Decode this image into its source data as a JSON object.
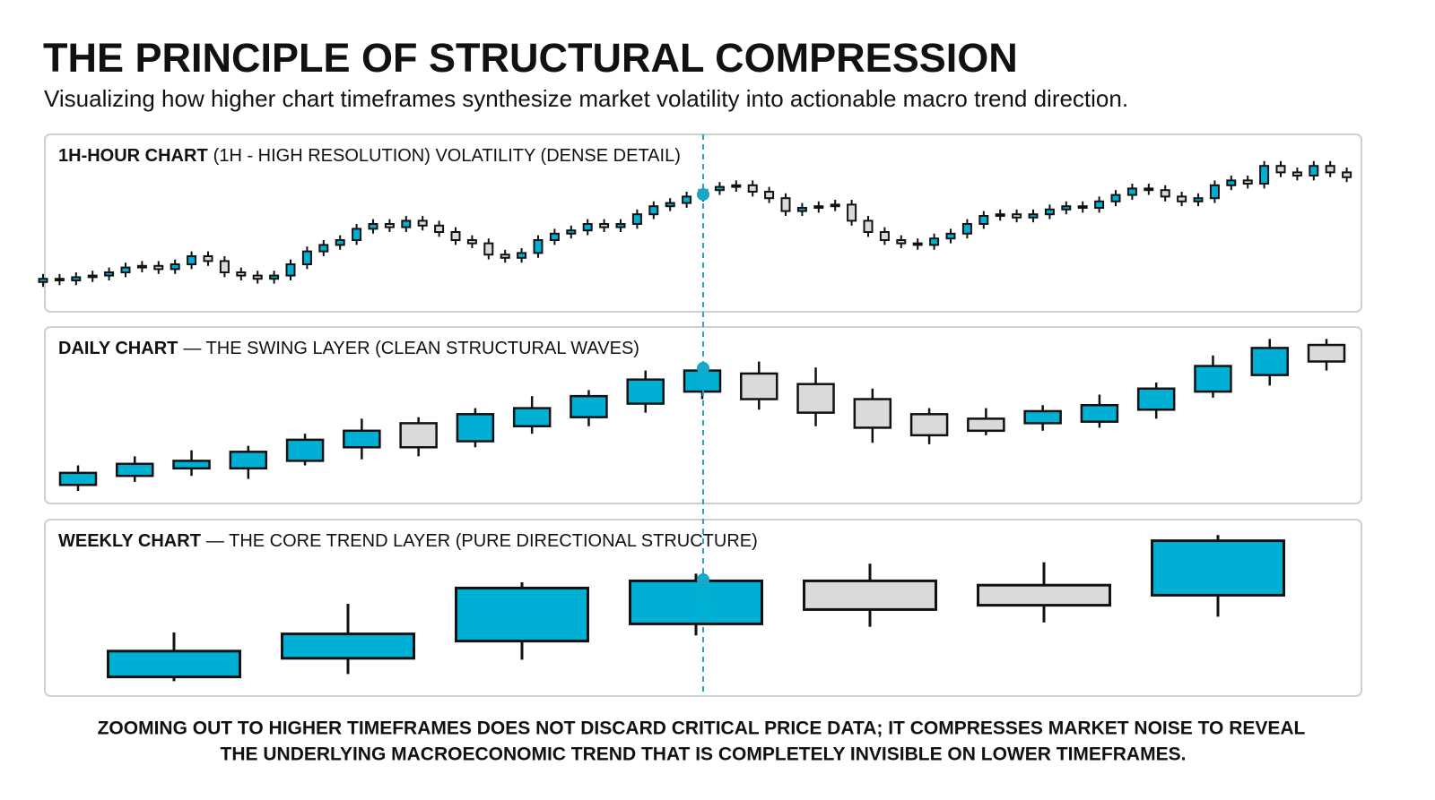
{
  "header": {
    "title": "THE PRINCIPLE OF STRUCTURAL COMPRESSION",
    "subtitle": "Visualizing how higher chart timeframes synthesize market volatility into actionable macro trend direction."
  },
  "chart_data": [
    {
      "type": "candlestick",
      "label_bold": "1H-HOUR CHART",
      "label": "(1H - HIGH RESOLUTION) VOLATILITY (DENSE DETAIL)",
      "up_color": "#00b0d4",
      "down_color": "#d9dadc",
      "ylim": [
        0,
        100
      ],
      "open": [
        14,
        16,
        15,
        17,
        18,
        20,
        23,
        24,
        22,
        25,
        30,
        27,
        20,
        18,
        16,
        18,
        25,
        33,
        37,
        40,
        47,
        50,
        48,
        52,
        49,
        45,
        40,
        38,
        31,
        29,
        32,
        40,
        44,
        46,
        50,
        48,
        50,
        56,
        61,
        63,
        67,
        71,
        73,
        74,
        70,
        66,
        58,
        60,
        61,
        62,
        52,
        45,
        40,
        38,
        37,
        41,
        44,
        50,
        55,
        56,
        54,
        56,
        59,
        61,
        60,
        64,
        68,
        72,
        71,
        67,
        64,
        66,
        74,
        77,
        75,
        86,
        82,
        80,
        86,
        82
      ],
      "high": [
        19,
        19,
        20,
        21,
        23,
        26,
        27,
        27,
        28,
        33,
        33,
        30,
        23,
        21,
        21,
        28,
        36,
        40,
        43,
        50,
        53,
        53,
        55,
        55,
        52,
        48,
        43,
        41,
        34,
        35,
        43,
        47,
        49,
        53,
        53,
        53,
        59,
        64,
        66,
        70,
        74,
        76,
        77,
        77,
        73,
        69,
        63,
        64,
        65,
        65,
        55,
        48,
        43,
        41,
        44,
        47,
        53,
        58,
        59,
        59,
        59,
        62,
        64,
        64,
        67,
        71,
        75,
        75,
        74,
        70,
        69,
        77,
        80,
        80,
        89,
        89,
        85,
        89,
        89,
        85
      ],
      "low": [
        11,
        12,
        12,
        14,
        15,
        17,
        20,
        19,
        19,
        22,
        24,
        17,
        15,
        13,
        13,
        15,
        22,
        30,
        34,
        37,
        44,
        45,
        45,
        46,
        42,
        37,
        35,
        28,
        26,
        26,
        29,
        37,
        41,
        43,
        45,
        45,
        47,
        53,
        58,
        60,
        64,
        68,
        70,
        67,
        63,
        55,
        55,
        57,
        58,
        49,
        42,
        37,
        35,
        34,
        34,
        38,
        41,
        47,
        52,
        51,
        51,
        53,
        56,
        57,
        57,
        61,
        65,
        68,
        64,
        61,
        61,
        63,
        71,
        72,
        72,
        79,
        77,
        77,
        79,
        76
      ],
      "close": [
        16,
        15,
        17,
        18,
        20,
        23,
        24,
        22,
        25,
        30,
        27,
        20,
        18,
        16,
        18,
        25,
        33,
        37,
        40,
        47,
        50,
        48,
        52,
        49,
        45,
        40,
        38,
        31,
        29,
        32,
        40,
        44,
        46,
        50,
        48,
        50,
        56,
        61,
        63,
        67,
        71,
        73,
        74,
        70,
        66,
        58,
        60,
        61,
        62,
        52,
        45,
        40,
        38,
        37,
        41,
        44,
        50,
        55,
        56,
        54,
        56,
        59,
        61,
        60,
        64,
        68,
        72,
        71,
        67,
        64,
        66,
        74,
        77,
        75,
        86,
        82,
        80,
        86,
        82,
        79
      ]
    },
    {
      "type": "candlestick",
      "label_bold": "DAILY CHART",
      "label": "— THE SWING LAYER (CLEAN STRUCTURAL WAVES)",
      "up_color": "#00b0d4",
      "down_color": "#d9dadc",
      "ylim": [
        0,
        105
      ],
      "open": [
        4,
        10,
        15,
        15,
        20,
        29,
        45,
        33,
        43,
        49,
        58,
        66,
        78,
        71,
        61,
        51,
        48,
        45,
        46,
        54,
        66,
        77,
        97
      ],
      "high": [
        17,
        23,
        27,
        30,
        38,
        48,
        49,
        55,
        63,
        67,
        80,
        85,
        86,
        82,
        68,
        55,
        55,
        57,
        64,
        72,
        90,
        101,
        101
      ],
      "low": [
        0,
        6,
        10,
        8,
        17,
        21,
        23,
        29,
        38,
        43,
        52,
        61,
        54,
        43,
        32,
        31,
        37,
        40,
        42,
        48,
        62,
        70,
        80
      ],
      "close": [
        12,
        18,
        20,
        26,
        34,
        40,
        29,
        51,
        55,
        63,
        74,
        80,
        61,
        52,
        42,
        37,
        40,
        53,
        57,
        68,
        83,
        95,
        86
      ]
    },
    {
      "type": "candlestick",
      "label_bold": "WEEKLY CHART",
      "label": "— THE CORE TREND LAYER (PURE DIRECTIONAL STRUCTURE)",
      "up_color": "#00b0d4",
      "down_color": "#d9dadc",
      "ylim": [
        0,
        105
      ],
      "open": [
        4,
        17,
        29,
        41,
        71,
        68,
        61
      ],
      "high": [
        35,
        55,
        70,
        76,
        83,
        84,
        103
      ],
      "low": [
        1,
        6,
        16,
        33,
        39,
        42,
        46
      ],
      "close": [
        22,
        34,
        66,
        71,
        51,
        54,
        99
      ]
    }
  ],
  "footer": {
    "line1": "ZOOMING OUT TO HIGHER TIMEFRAMES DOES NOT DISCARD CRITICAL PRICE DATA; IT COMPRESSES MARKET NOISE TO REVEAL",
    "line2": "THE UNDERLYING MACROECONOMIC TREND THAT IS COMPLETELY INVISIBLE ON LOWER TIMEFRAMES."
  }
}
